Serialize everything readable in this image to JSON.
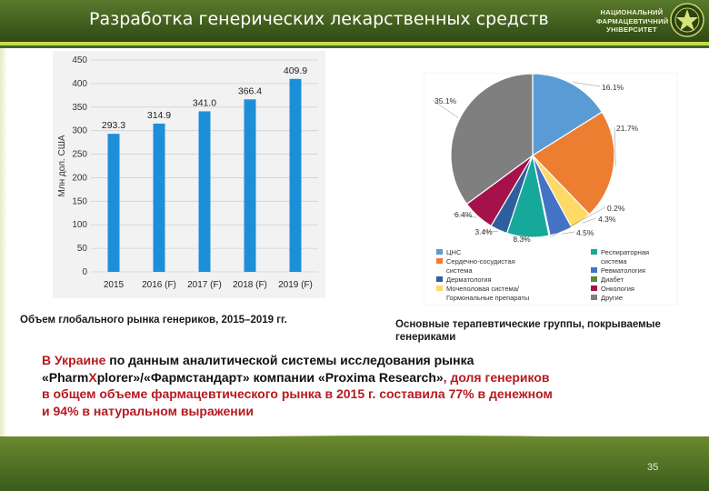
{
  "header": {
    "title": "Разработка генерических лекарственных средств",
    "logo_lines": [
      "НАЦИОНАЛЬНИЙ",
      "ФАРМАЦЕВТИЧНИЙ",
      "УНІВЕРСИТЕТ"
    ]
  },
  "bar_caption": "Объем глобального рынка генериков, 2015–2019 гг.",
  "pie_caption": [
    "Основные терапевтические группы, покрываемые",
    "генериками"
  ],
  "body": {
    "line1_red": "В Украине",
    "line1_rest": " по данным аналитической системы исследования рынка",
    "line2_pre": "«Pharm",
    "line2_x": "X",
    "line2_plorer": "plorer»/«Фармстандарт» компании «Proxima Research»",
    "line2_red": ", доля генериков",
    "line3": " в общем объеме фармацевтического рынка в 2015 г. составила 77% в денежном",
    "line4": "и 94% в натуральном выражении"
  },
  "page_number": "35",
  "chart_data": [
    {
      "type": "bar",
      "ylabel": "Млн дол. США",
      "ylim": [
        0,
        450
      ],
      "yticks": [
        0,
        50,
        100,
        150,
        200,
        250,
        300,
        350,
        400,
        450
      ],
      "categories": [
        "2015",
        "2016 (F)",
        "2017 (F)",
        "2018 (F)",
        "2019 (F)"
      ],
      "values": [
        293.3,
        314.9,
        341.0,
        366.4,
        409.9
      ],
      "value_labels": [
        "293.3",
        "314.9",
        "341.0",
        "366.4",
        "409.9"
      ],
      "bar_color": "#1d8fd9",
      "grid": true
    },
    {
      "type": "pie",
      "slices": [
        {
          "name": "ЦНС",
          "value": 16.1,
          "label": "16.1%",
          "color": "#5b9bd5"
        },
        {
          "name": "Сердечно-сосудистая система",
          "value": 21.7,
          "label": "21.7%",
          "color": "#ed7d31"
        },
        {
          "name": "Мочеполовая система/ Гормональные препараты",
          "value": 4.3,
          "label": "4.3%",
          "color": "#ffd966"
        },
        {
          "name": "Ревматология",
          "value": 4.5,
          "label": "4.5%",
          "color": "#4472c4"
        },
        {
          "name": "Диабет",
          "value": 0.2,
          "label": "0.2%",
          "color": "#5a8a3a"
        },
        {
          "name": "Респираторная система",
          "value": 8.3,
          "label": "8.3%",
          "color": "#16a99b"
        },
        {
          "name": "Дерматология",
          "value": 3.4,
          "label": "3.4%",
          "color": "#2e5f9e"
        },
        {
          "name": "Онкология",
          "value": 6.4,
          "label": "6.4%",
          "color": "#a5124b"
        },
        {
          "name": "Другие",
          "value": 35.1,
          "label": "35.1%",
          "color": "#7f7f7f"
        }
      ],
      "legend": [
        {
          "name": "ЦНС",
          "color": "#5b9bd5"
        },
        {
          "name": "Респираторная",
          "color": "#16a99b"
        },
        {
          "name": "Сердечно-сосудистая",
          "color": "#ed7d31"
        },
        {
          "name": "система",
          "color": null
        },
        {
          "name": "система",
          "color": null
        },
        {
          "name": "Ревматология",
          "color": "#4472c4"
        },
        {
          "name": "Дерматология",
          "color": "#2e5f9e"
        },
        {
          "name": "Диабет",
          "color": "#5a8a3a"
        },
        {
          "name": "Мочеполовая система/",
          "color": "#ffd966"
        },
        {
          "name": "Онкология",
          "color": "#a5124b"
        },
        {
          "name": "Гормональные препараты",
          "color": null
        },
        {
          "name": "Другие",
          "color": "#7f7f7f"
        }
      ],
      "legend_placement": "bottom"
    }
  ]
}
